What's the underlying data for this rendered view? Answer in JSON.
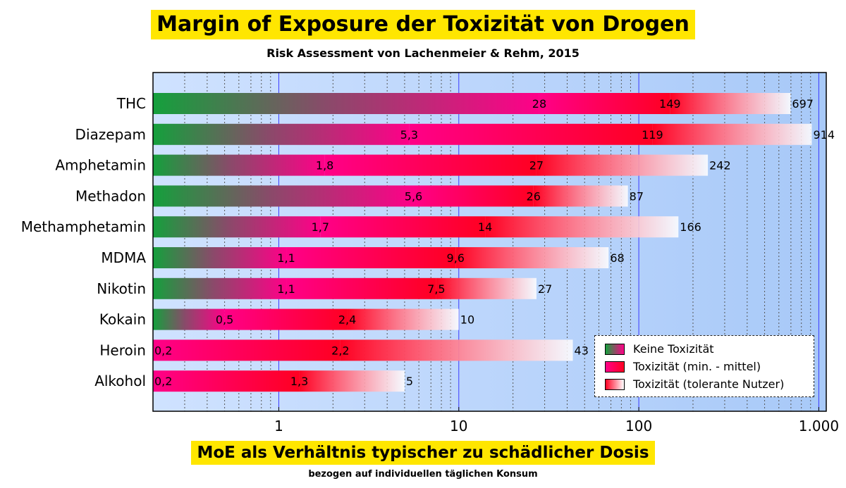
{
  "chart_data": {
    "type": "bar",
    "orientation": "horizontal-stacked-gradient",
    "title": "Margin of Exposure der Toxizität von Drogen",
    "subtitle": "Risk Assessment von Lachenmeier & Rehm, 2015",
    "xlabel": "MoE als Verhältnis typischer zu schädlicher Dosis",
    "xlabel_sub": "bezogen auf individuellen täglichen Konsum",
    "x_scale": "log",
    "xlim": [
      0.2,
      1100
    ],
    "x_ticks": [
      {
        "value": 1,
        "label": "1"
      },
      {
        "value": 10,
        "label": "10"
      },
      {
        "value": 100,
        "label": "100"
      },
      {
        "value": 1000,
        "label": "1.000"
      }
    ],
    "categories": [
      "THC",
      "Diazepam",
      "Amphetamin",
      "Methadon",
      "Methamphetamin",
      "MDMA",
      "Nikotin",
      "Kokain",
      "Heroin",
      "Alkohol"
    ],
    "series": [
      {
        "name": "Keine Toxizität",
        "values": [
          28,
          5.3,
          1.8,
          5.6,
          1.7,
          1.1,
          1.1,
          0.5,
          0.2,
          0.2
        ],
        "labels": [
          "28",
          "5,3",
          "1,8",
          "5,6",
          "1,7",
          "1,1",
          "1,1",
          "0,5",
          "0,2",
          "0,2"
        ]
      },
      {
        "name": "Toxizität (min. - mittel)",
        "values": [
          149,
          119,
          27,
          26,
          14,
          9.6,
          7.5,
          2.4,
          2.2,
          1.3
        ],
        "labels": [
          "149",
          "119",
          "27",
          "26",
          "14",
          "9,6",
          "7,5",
          "2,4",
          "2,2",
          "1,3"
        ]
      },
      {
        "name": "Toxizität (tolerante Nutzer)",
        "values": [
          697,
          914,
          242,
          87,
          166,
          68,
          27,
          10,
          43,
          5
        ],
        "labels": [
          "697",
          "914",
          "242",
          "87",
          "166",
          "68",
          "27",
          "10",
          "43",
          "5"
        ]
      }
    ],
    "grid": true,
    "legend_position": "bottom-right",
    "colors": {
      "green": "#14a03c",
      "magenta": "#ff0088",
      "red": "#ff0022",
      "fade": "#ffffff",
      "plot_bg_left": "#cfe2ff",
      "plot_bg_right": "#a8c9f8"
    }
  }
}
